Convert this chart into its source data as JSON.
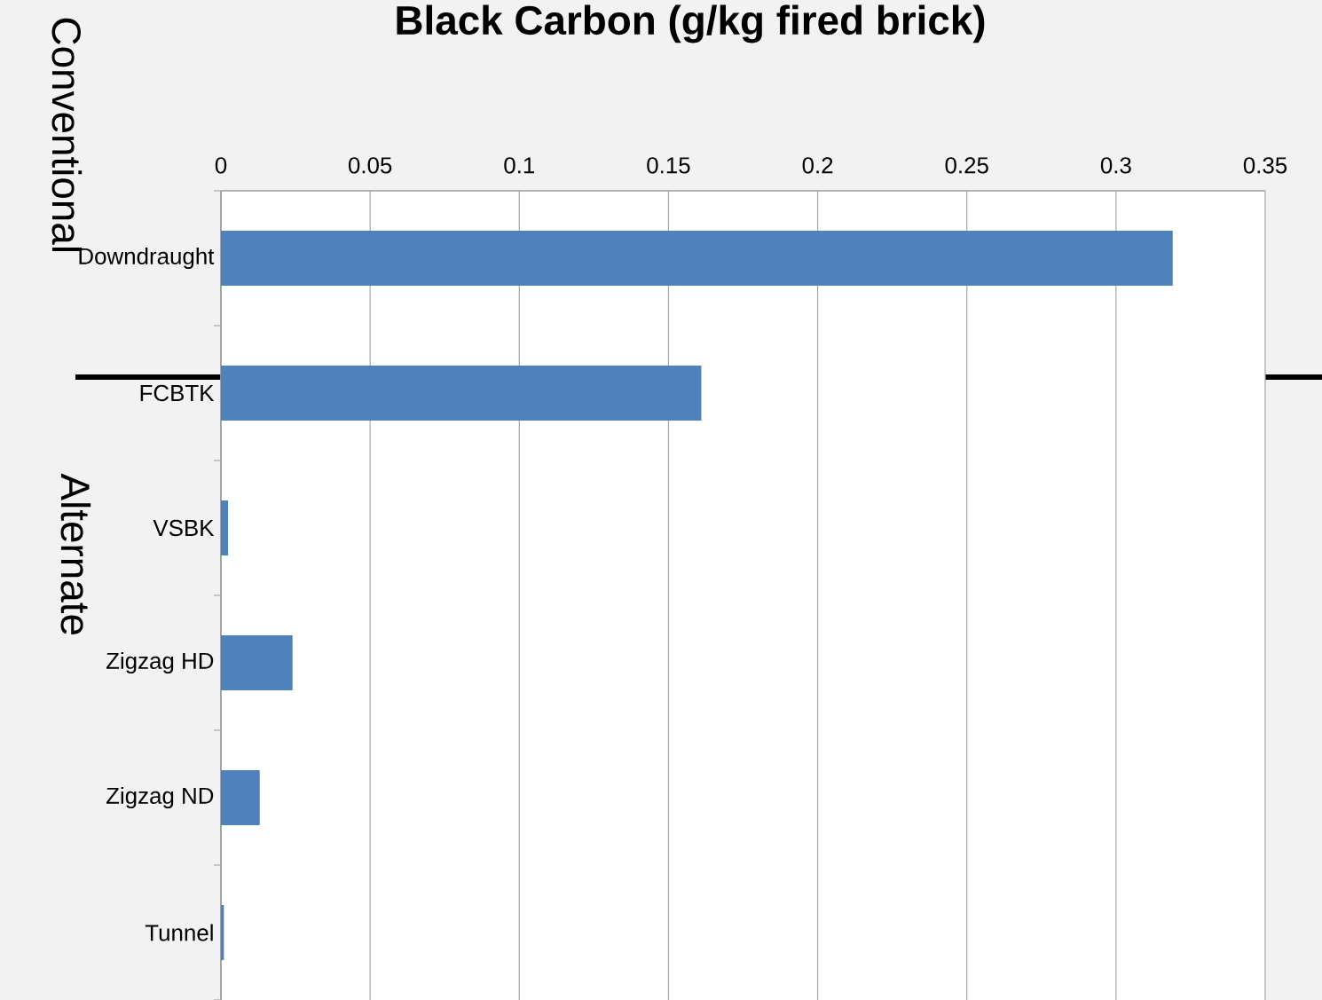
{
  "chart_data": {
    "type": "bar",
    "orientation": "horizontal",
    "title": "Black Carbon (g/kg fired brick)",
    "categories": [
      "Downdraught",
      "FCBTK",
      "VSBK",
      "Zigzag HD",
      "Zigzag ND",
      "Tunnel"
    ],
    "values": [
      0.319,
      0.161,
      0.0024,
      0.024,
      0.013,
      0.001
    ],
    "color": "#4f81bd",
    "xlim": [
      0,
      0.35
    ],
    "xticks": [
      0,
      0.05,
      0.1,
      0.15,
      0.2,
      0.25,
      0.3,
      0.35
    ],
    "grid": "x",
    "annotations": [
      "Conventional",
      "Alternate"
    ]
  }
}
